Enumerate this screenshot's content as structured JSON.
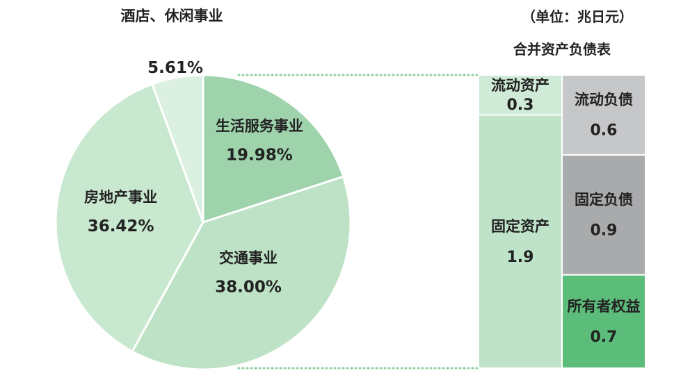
{
  "unit_note": "（单位：兆日元）",
  "chart_data": [
    {
      "type": "pie",
      "categories": [
        "生活服务事业",
        "交通事业",
        "房地产事业",
        "酒店、休闲事业"
      ],
      "values": [
        19.98,
        38.0,
        36.42,
        5.61
      ],
      "value_labels": [
        "19.98%",
        "38.00%",
        "36.42%",
        "5.61%"
      ],
      "colors": [
        "#9ed3ac",
        "#bde2c5",
        "#c9e8d0",
        "#dcf0e2"
      ],
      "legend": "none"
    },
    {
      "type": "bar",
      "title": "合并资产负债表",
      "stacked": true,
      "series": [
        {
          "categories": [
            "流动资产",
            "固定资产"
          ],
          "values": [
            0.3,
            1.9
          ],
          "value_labels": [
            "0.3",
            "1.9"
          ],
          "colors": [
            "#cfead6",
            "#bfe3c8"
          ]
        },
        {
          "categories": [
            "流动负债",
            "固定负债",
            "所有者权益"
          ],
          "values": [
            0.6,
            0.9,
            0.7
          ],
          "value_labels": [
            "0.6",
            "0.9",
            "0.7"
          ],
          "colors": [
            "#c6c7c9",
            "#a9aaac",
            "#5cbd7b"
          ]
        }
      ],
      "total": 2.2
    }
  ]
}
